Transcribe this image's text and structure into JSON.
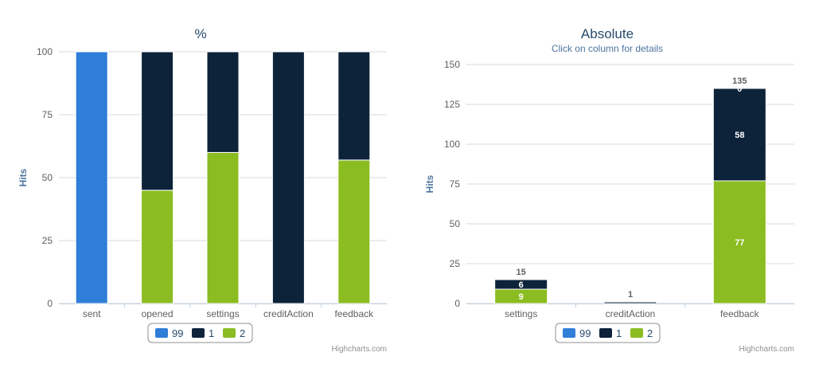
{
  "colors": {
    "series_99": "#2f7ed8",
    "series_1": "#0d233a",
    "series_2": "#8bbc21",
    "title": "#274b6d",
    "axis_text": "#606060",
    "grid": "#d8d8d8",
    "credits": "#909090"
  },
  "chart_data": [
    {
      "type": "bar",
      "stacking": "percent",
      "title": "%",
      "subtitle": "",
      "ylabel": "Hits",
      "ylim": [
        0,
        100
      ],
      "yticks": [
        "0",
        "25",
        "50",
        "75",
        "100"
      ],
      "grid": true,
      "legend_position": "bottom-center",
      "categories": [
        "sent",
        "opened",
        "settings",
        "creditAction",
        "feedback"
      ],
      "series": [
        {
          "name": "99",
          "values": [
            100,
            0,
            0,
            0,
            0
          ]
        },
        {
          "name": "1",
          "values": [
            0,
            55,
            40,
            100,
            43
          ]
        },
        {
          "name": "2",
          "values": [
            0,
            45,
            60,
            0,
            57
          ]
        }
      ],
      "credits": "Highcharts.com"
    },
    {
      "type": "bar",
      "stacking": "normal",
      "title": "Absolute",
      "subtitle": "Click on column for details",
      "ylabel": "Hits",
      "ylim": [
        0,
        150
      ],
      "yticks": [
        "0",
        "25",
        "50",
        "75",
        "100",
        "125",
        "150"
      ],
      "grid": true,
      "legend_position": "bottom-center",
      "categories": [
        "settings",
        "creditAction",
        "feedback"
      ],
      "series": [
        {
          "name": "99",
          "values": [
            0,
            0,
            0
          ]
        },
        {
          "name": "1",
          "values": [
            6,
            1,
            58
          ]
        },
        {
          "name": "2",
          "values": [
            9,
            0,
            77
          ]
        }
      ],
      "segment_labels": [
        {
          "category": 0,
          "series": "1",
          "text": "6"
        },
        {
          "category": 0,
          "series": "2",
          "text": "9"
        },
        {
          "category": 2,
          "series": "99",
          "text": "0"
        },
        {
          "category": 2,
          "series": "1",
          "text": "58"
        },
        {
          "category": 2,
          "series": "2",
          "text": "77"
        }
      ],
      "totals": [
        "15",
        "1",
        "135"
      ],
      "credits": "Highcharts.com"
    }
  ]
}
